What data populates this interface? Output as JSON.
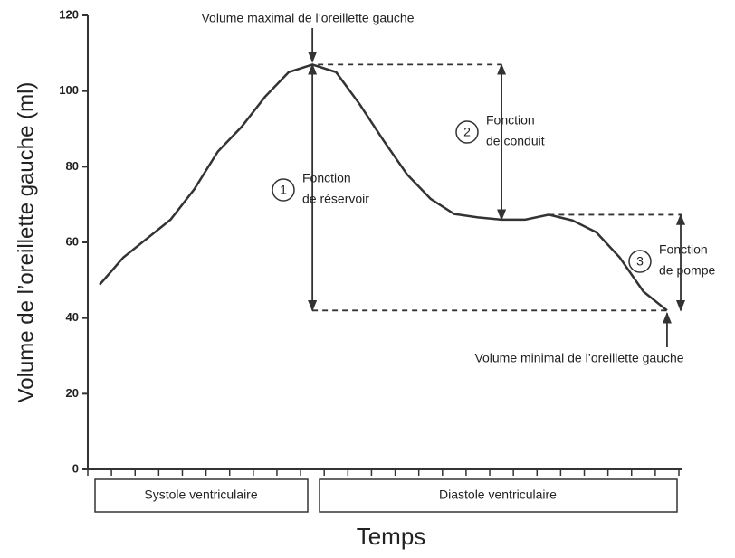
{
  "chart_data": {
    "type": "line",
    "y_label": "Volume de l’oreillette gauche (ml)",
    "x_label": "Temps",
    "x": [
      0.5,
      1.5,
      2.5,
      3.5,
      4.5,
      5.5,
      6.5,
      7.5,
      8.5,
      9.5,
      10.5,
      11.5,
      12.5,
      13.5,
      14.5,
      15.5,
      16.5,
      17.5,
      18.5,
      19.5,
      20.5,
      21.5,
      22.5,
      23.5,
      24.5
    ],
    "values": [
      48.8,
      56,
      61,
      66,
      74,
      84,
      90.5,
      98.5,
      105,
      107,
      105,
      96.5,
      87,
      78,
      71.5,
      67.5,
      66.6,
      66,
      66,
      67.3,
      65.8,
      62.7,
      56,
      47,
      42
    ],
    "color": "#333333",
    "xlim": [
      0,
      25
    ],
    "xticks": [
      0,
      1,
      2,
      3,
      4,
      5,
      6,
      7,
      8,
      9,
      10,
      11,
      12,
      13,
      14,
      15,
      16,
      17,
      18,
      19,
      20,
      21,
      22,
      23,
      24,
      25
    ],
    "ylim": [
      0,
      120
    ],
    "yticks": [
      0,
      20,
      40,
      60,
      80,
      100,
      120
    ],
    "phases": [
      "Systole ventriculaire",
      "Diastole ventriculaire"
    ],
    "annotations": {
      "max_label": "Volume maximal de l’oreillette gauche",
      "min_label": "Volume minimal de l’oreillette gauche",
      "functions": [
        {
          "number": "1",
          "lines": [
            "Fonction",
            "de réservoir"
          ]
        },
        {
          "number": "2",
          "lines": [
            "Fonction",
            "de conduit"
          ]
        },
        {
          "number": "3",
          "lines": [
            "Fonction",
            "de pompe"
          ]
        }
      ]
    }
  }
}
